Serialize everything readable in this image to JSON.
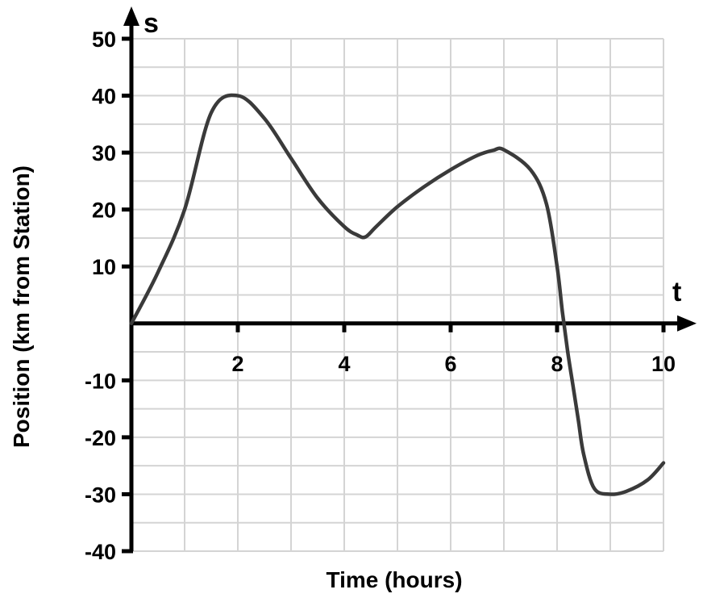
{
  "chart_data": {
    "type": "line",
    "title": "",
    "xlabel": "Time (hours)",
    "ylabel": "Position (km from  Station)",
    "x_axis_var": "t",
    "y_axis_var": "s",
    "xlim": [
      0,
      10
    ],
    "ylim": [
      -40,
      50
    ],
    "x_ticks": [
      2,
      4,
      6,
      8,
      10
    ],
    "y_ticks": [
      50,
      40,
      30,
      20,
      10,
      -10,
      -20,
      -30,
      -40
    ],
    "x_tick_labels": [
      "2",
      "4",
      "6",
      "8",
      "10"
    ],
    "y_tick_labels": [
      "50",
      "40",
      "30",
      "20",
      "10",
      "-10",
      "-20",
      "-30",
      "-40"
    ],
    "grid": true,
    "grid_x_step": 1,
    "grid_y_step": 5,
    "line_color": "#3a3a3a",
    "grid_color": "#d4d4d4",
    "series": [
      {
        "x": [
          0,
          0.5,
          1,
          1.5,
          2,
          2.5,
          3,
          3.5,
          4,
          4.25,
          4.4,
          4.6,
          5,
          5.5,
          6,
          6.5,
          6.8,
          7,
          7.5,
          7.8,
          8,
          8.1,
          8.2,
          8.3,
          8.4,
          8.5,
          8.7,
          9,
          9.3,
          9.7,
          10
        ],
        "y": [
          0,
          9,
          20,
          37,
          40,
          36,
          29,
          22,
          17,
          15.5,
          15.2,
          17,
          20.5,
          24,
          27,
          29.5,
          30.4,
          30.5,
          27,
          21,
          10,
          2,
          -5,
          -11,
          -17,
          -23,
          -29,
          -30,
          -29.5,
          -27.5,
          -24.5
        ]
      }
    ]
  }
}
